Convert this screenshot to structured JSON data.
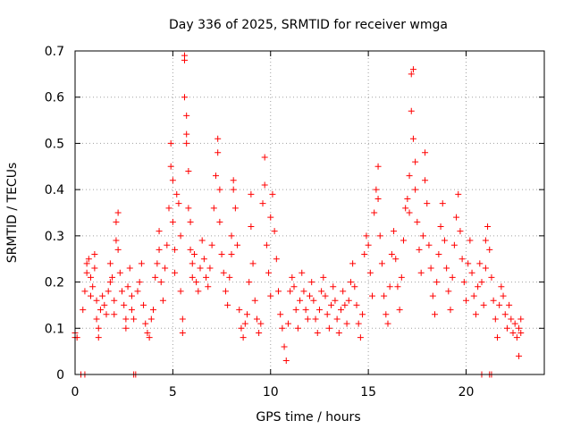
{
  "chart_data": {
    "type": "scatter",
    "title": "Day 336 of 2025, SRMTID for receiver wmga",
    "xlabel": "GPS time / hours",
    "ylabel": "SRMTID / TECUs",
    "xlim": [
      0,
      24
    ],
    "ylim": [
      0,
      0.7
    ],
    "xticks": [
      0,
      5,
      10,
      15,
      20
    ],
    "yticks": [
      0,
      0.1,
      0.2,
      0.3,
      0.4,
      0.5,
      0.6,
      0.7
    ],
    "xtick_labels": [
      "0",
      "5",
      "10",
      "15",
      "20"
    ],
    "ytick_labels": [
      "0",
      "0.1",
      "0.2",
      "0.3",
      "0.4",
      "0.5",
      "0.6",
      "0.7"
    ],
    "grid": true,
    "marker": "+",
    "color": "#ff0000",
    "series": [
      {
        "name": "SRMTID",
        "points": [
          [
            0.0,
            0.08
          ],
          [
            0.0,
            0.09
          ],
          [
            0.1,
            0.08
          ],
          [
            0.4,
            0.14
          ],
          [
            0.5,
            0.18
          ],
          [
            0.6,
            0.22
          ],
          [
            0.6,
            0.24
          ],
          [
            0.7,
            0.25
          ],
          [
            0.8,
            0.21
          ],
          [
            0.8,
            0.17
          ],
          [
            0.9,
            0.19
          ],
          [
            1.0,
            0.26
          ],
          [
            1.0,
            0.23
          ],
          [
            1.1,
            0.16
          ],
          [
            1.1,
            0.12
          ],
          [
            1.2,
            0.1
          ],
          [
            1.2,
            0.08
          ],
          [
            1.3,
            0.14
          ],
          [
            1.4,
            0.17
          ],
          [
            1.5,
            0.15
          ],
          [
            1.6,
            0.13
          ],
          [
            1.7,
            0.18
          ],
          [
            1.8,
            0.2
          ],
          [
            1.8,
            0.24
          ],
          [
            1.9,
            0.21
          ],
          [
            2.0,
            0.16
          ],
          [
            2.0,
            0.13
          ],
          [
            2.1,
            0.29
          ],
          [
            2.1,
            0.33
          ],
          [
            2.2,
            0.35
          ],
          [
            2.2,
            0.27
          ],
          [
            2.3,
            0.22
          ],
          [
            2.4,
            0.18
          ],
          [
            2.5,
            0.15
          ],
          [
            2.6,
            0.12
          ],
          [
            2.6,
            0.1
          ],
          [
            2.7,
            0.19
          ],
          [
            2.8,
            0.23
          ],
          [
            2.9,
            0.17
          ],
          [
            2.9,
            0.14
          ],
          [
            3.0,
            0.12
          ],
          [
            3.2,
            0.18
          ],
          [
            3.3,
            0.2
          ],
          [
            3.4,
            0.24
          ],
          [
            3.5,
            0.15
          ],
          [
            3.6,
            0.11
          ],
          [
            3.7,
            0.09
          ],
          [
            3.8,
            0.08
          ],
          [
            3.9,
            0.12
          ],
          [
            4.0,
            0.14
          ],
          [
            4.1,
            0.21
          ],
          [
            4.2,
            0.24
          ],
          [
            4.3,
            0.31
          ],
          [
            4.3,
            0.27
          ],
          [
            4.4,
            0.2
          ],
          [
            4.5,
            0.16
          ],
          [
            4.6,
            0.23
          ],
          [
            4.7,
            0.28
          ],
          [
            4.8,
            0.36
          ],
          [
            4.9,
            0.45
          ],
          [
            4.9,
            0.5
          ],
          [
            5.0,
            0.42
          ],
          [
            5.0,
            0.33
          ],
          [
            5.1,
            0.27
          ],
          [
            5.1,
            0.22
          ],
          [
            5.2,
            0.39
          ],
          [
            5.3,
            0.37
          ],
          [
            5.4,
            0.3
          ],
          [
            5.4,
            0.18
          ],
          [
            5.5,
            0.12
          ],
          [
            5.5,
            0.09
          ],
          [
            5.6,
            0.69
          ],
          [
            5.6,
            0.68
          ],
          [
            5.6,
            0.6
          ],
          [
            5.7,
            0.56
          ],
          [
            5.7,
            0.52
          ],
          [
            5.7,
            0.5
          ],
          [
            5.8,
            0.44
          ],
          [
            5.8,
            0.36
          ],
          [
            5.9,
            0.33
          ],
          [
            5.9,
            0.27
          ],
          [
            6.0,
            0.24
          ],
          [
            6.0,
            0.21
          ],
          [
            6.1,
            0.26
          ],
          [
            6.2,
            0.2
          ],
          [
            6.3,
            0.18
          ],
          [
            6.4,
            0.23
          ],
          [
            6.5,
            0.29
          ],
          [
            6.6,
            0.25
          ],
          [
            6.7,
            0.21
          ],
          [
            6.8,
            0.19
          ],
          [
            6.9,
            0.23
          ],
          [
            7.0,
            0.28
          ],
          [
            7.1,
            0.36
          ],
          [
            7.2,
            0.43
          ],
          [
            7.3,
            0.51
          ],
          [
            7.3,
            0.48
          ],
          [
            7.4,
            0.4
          ],
          [
            7.4,
            0.33
          ],
          [
            7.5,
            0.26
          ],
          [
            7.6,
            0.22
          ],
          [
            7.7,
            0.18
          ],
          [
            7.8,
            0.15
          ],
          [
            7.9,
            0.21
          ],
          [
            8.0,
            0.26
          ],
          [
            8.0,
            0.3
          ],
          [
            8.1,
            0.4
          ],
          [
            8.1,
            0.42
          ],
          [
            8.2,
            0.36
          ],
          [
            8.3,
            0.28
          ],
          [
            8.4,
            0.14
          ],
          [
            8.5,
            0.1
          ],
          [
            8.6,
            0.08
          ],
          [
            8.7,
            0.11
          ],
          [
            8.8,
            0.13
          ],
          [
            8.9,
            0.2
          ],
          [
            9.0,
            0.39
          ],
          [
            9.0,
            0.32
          ],
          [
            9.1,
            0.24
          ],
          [
            9.2,
            0.16
          ],
          [
            9.3,
            0.12
          ],
          [
            9.4,
            0.09
          ],
          [
            9.5,
            0.11
          ],
          [
            9.6,
            0.37
          ],
          [
            9.7,
            0.47
          ],
          [
            9.7,
            0.41
          ],
          [
            9.8,
            0.28
          ],
          [
            9.9,
            0.22
          ],
          [
            10.0,
            0.17
          ],
          [
            10.0,
            0.34
          ],
          [
            10.1,
            0.39
          ],
          [
            10.2,
            0.31
          ],
          [
            10.3,
            0.25
          ],
          [
            10.4,
            0.18
          ],
          [
            10.5,
            0.13
          ],
          [
            10.6,
            0.1
          ],
          [
            10.7,
            0.06
          ],
          [
            10.8,
            0.03
          ],
          [
            10.9,
            0.11
          ],
          [
            11.0,
            0.18
          ],
          [
            11.1,
            0.21
          ],
          [
            11.2,
            0.19
          ],
          [
            11.3,
            0.14
          ],
          [
            11.4,
            0.1
          ],
          [
            11.5,
            0.16
          ],
          [
            11.6,
            0.22
          ],
          [
            11.7,
            0.18
          ],
          [
            11.8,
            0.14
          ],
          [
            11.9,
            0.12
          ],
          [
            12.0,
            0.17
          ],
          [
            12.1,
            0.2
          ],
          [
            12.2,
            0.16
          ],
          [
            12.3,
            0.12
          ],
          [
            12.4,
            0.09
          ],
          [
            12.5,
            0.14
          ],
          [
            12.6,
            0.18
          ],
          [
            12.7,
            0.21
          ],
          [
            12.8,
            0.17
          ],
          [
            12.9,
            0.13
          ],
          [
            13.0,
            0.1
          ],
          [
            13.1,
            0.15
          ],
          [
            13.2,
            0.19
          ],
          [
            13.3,
            0.16
          ],
          [
            13.4,
            0.12
          ],
          [
            13.5,
            0.09
          ],
          [
            13.6,
            0.14
          ],
          [
            13.7,
            0.18
          ],
          [
            13.8,
            0.15
          ],
          [
            13.9,
            0.11
          ],
          [
            14.0,
            0.16
          ],
          [
            14.1,
            0.2
          ],
          [
            14.2,
            0.24
          ],
          [
            14.3,
            0.19
          ],
          [
            14.4,
            0.15
          ],
          [
            14.5,
            0.11
          ],
          [
            14.6,
            0.08
          ],
          [
            14.7,
            0.13
          ],
          [
            14.8,
            0.26
          ],
          [
            14.9,
            0.3
          ],
          [
            15.0,
            0.28
          ],
          [
            15.1,
            0.22
          ],
          [
            15.2,
            0.17
          ],
          [
            15.3,
            0.35
          ],
          [
            15.4,
            0.4
          ],
          [
            15.5,
            0.45
          ],
          [
            15.5,
            0.38
          ],
          [
            15.6,
            0.3
          ],
          [
            15.7,
            0.24
          ],
          [
            15.8,
            0.17
          ],
          [
            15.9,
            0.13
          ],
          [
            16.0,
            0.11
          ],
          [
            16.1,
            0.19
          ],
          [
            16.2,
            0.26
          ],
          [
            16.3,
            0.31
          ],
          [
            16.4,
            0.25
          ],
          [
            16.5,
            0.19
          ],
          [
            16.6,
            0.14
          ],
          [
            16.7,
            0.21
          ],
          [
            16.8,
            0.29
          ],
          [
            16.9,
            0.36
          ],
          [
            17.0,
            0.38
          ],
          [
            17.1,
            0.43
          ],
          [
            17.1,
            0.35
          ],
          [
            17.2,
            0.57
          ],
          [
            17.2,
            0.65
          ],
          [
            17.3,
            0.66
          ],
          [
            17.3,
            0.51
          ],
          [
            17.4,
            0.46
          ],
          [
            17.4,
            0.4
          ],
          [
            17.5,
            0.33
          ],
          [
            17.6,
            0.27
          ],
          [
            17.7,
            0.22
          ],
          [
            17.8,
            0.3
          ],
          [
            17.9,
            0.42
          ],
          [
            17.9,
            0.48
          ],
          [
            18.0,
            0.37
          ],
          [
            18.1,
            0.28
          ],
          [
            18.2,
            0.23
          ],
          [
            18.3,
            0.17
          ],
          [
            18.4,
            0.13
          ],
          [
            18.5,
            0.2
          ],
          [
            18.6,
            0.26
          ],
          [
            18.7,
            0.32
          ],
          [
            18.8,
            0.37
          ],
          [
            18.9,
            0.29
          ],
          [
            19.0,
            0.23
          ],
          [
            19.1,
            0.18
          ],
          [
            19.2,
            0.14
          ],
          [
            19.3,
            0.21
          ],
          [
            19.4,
            0.28
          ],
          [
            19.5,
            0.34
          ],
          [
            19.6,
            0.39
          ],
          [
            19.7,
            0.31
          ],
          [
            19.8,
            0.25
          ],
          [
            19.9,
            0.2
          ],
          [
            20.0,
            0.16
          ],
          [
            20.1,
            0.24
          ],
          [
            20.2,
            0.29
          ],
          [
            20.3,
            0.22
          ],
          [
            20.4,
            0.17
          ],
          [
            20.5,
            0.13
          ],
          [
            20.6,
            0.19
          ],
          [
            20.7,
            0.24
          ],
          [
            20.8,
            0.2
          ],
          [
            20.9,
            0.15
          ],
          [
            21.0,
            0.23
          ],
          [
            21.0,
            0.29
          ],
          [
            21.1,
            0.32
          ],
          [
            21.2,
            0.27
          ],
          [
            21.3,
            0.21
          ],
          [
            21.4,
            0.16
          ],
          [
            21.5,
            0.12
          ],
          [
            21.6,
            0.08
          ],
          [
            21.7,
            0.15
          ],
          [
            21.8,
            0.19
          ],
          [
            21.9,
            0.17
          ],
          [
            22.0,
            0.13
          ],
          [
            22.1,
            0.1
          ],
          [
            22.2,
            0.15
          ],
          [
            22.3,
            0.12
          ],
          [
            22.4,
            0.09
          ],
          [
            22.5,
            0.11
          ],
          [
            22.6,
            0.08
          ],
          [
            22.7,
            0.04
          ],
          [
            22.7,
            0.1
          ],
          [
            22.8,
            0.12
          ],
          [
            22.8,
            0.09
          ],
          [
            0.3,
            0.0
          ],
          [
            0.5,
            0.0
          ],
          [
            3.0,
            0.0
          ],
          [
            3.1,
            0.0
          ],
          [
            20.8,
            0.0
          ],
          [
            21.2,
            0.0
          ],
          [
            21.3,
            0.0
          ]
        ]
      }
    ]
  }
}
